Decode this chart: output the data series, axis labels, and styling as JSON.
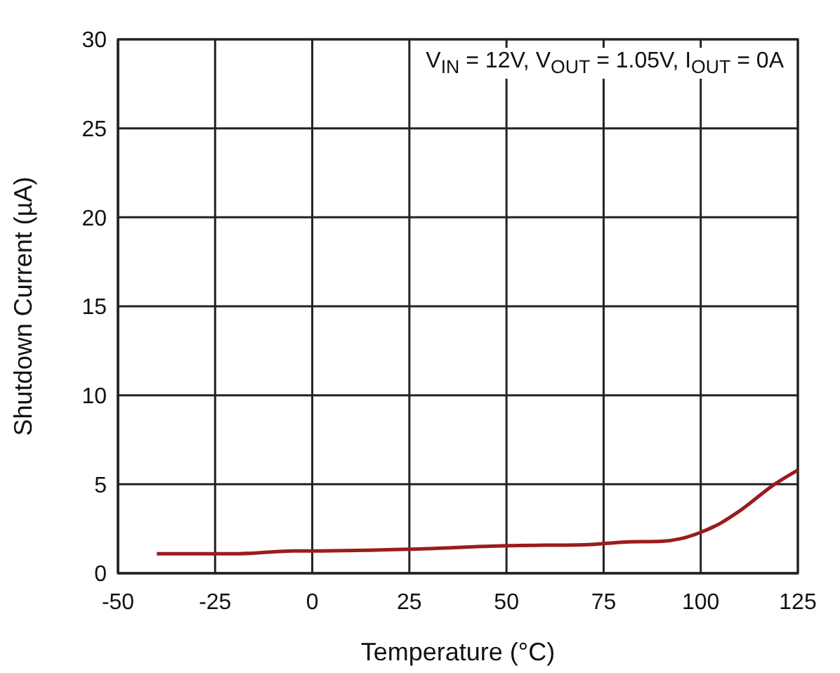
{
  "chart_data": {
    "type": "line",
    "xlabel": "Temperature (°C)",
    "ylabel": "Shutdown Current (µA)",
    "annotations": [
      "V$_{IN}$ = 12V, V$_{OUT}$ = 1.05V, I$_{OUT}$ = 0A"
    ],
    "x": [
      -40,
      -20,
      -10,
      -5,
      0,
      25,
      50,
      70,
      80,
      90,
      95,
      100,
      105,
      110,
      119,
      125
    ],
    "series": [
      {
        "color": "#9b1c1c",
        "values": [
          1.1,
          1.1,
          1.2,
          1.25,
          1.25,
          1.35,
          1.55,
          1.6,
          1.75,
          1.8,
          1.95,
          2.3,
          2.8,
          3.5,
          5.0,
          5.8
        ]
      }
    ],
    "xlim": [
      -50,
      125
    ],
    "xticks": [
      -50,
      -25,
      0,
      25,
      50,
      75,
      100,
      125
    ],
    "ylim": [
      0,
      30
    ],
    "yticks": [
      0,
      5,
      10,
      15,
      20,
      25,
      30
    ],
    "grid": true,
    "legend": false,
    "marker": "none",
    "line_style": "solid"
  }
}
